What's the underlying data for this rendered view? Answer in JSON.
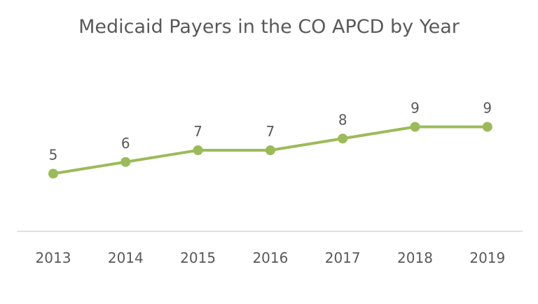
{
  "chart_data": {
    "type": "line",
    "title": "Medicaid Payers in the CO APCD by Year",
    "categories": [
      "2013",
      "2014",
      "2015",
      "2016",
      "2017",
      "2018",
      "2019"
    ],
    "series": [
      {
        "values": [
          5,
          6,
          7,
          7,
          8,
          9,
          9
        ],
        "color": "#9BBB59"
      }
    ],
    "data_labels": [
      "5",
      "6",
      "7",
      "7",
      "8",
      "9",
      "9"
    ],
    "xlabel": "",
    "ylabel": "",
    "ylim": [
      0,
      10
    ],
    "grid": false,
    "legend": "none",
    "colors": {
      "line": "#9BBB59",
      "axis": "#D9D9D9",
      "text": "#595959"
    }
  }
}
